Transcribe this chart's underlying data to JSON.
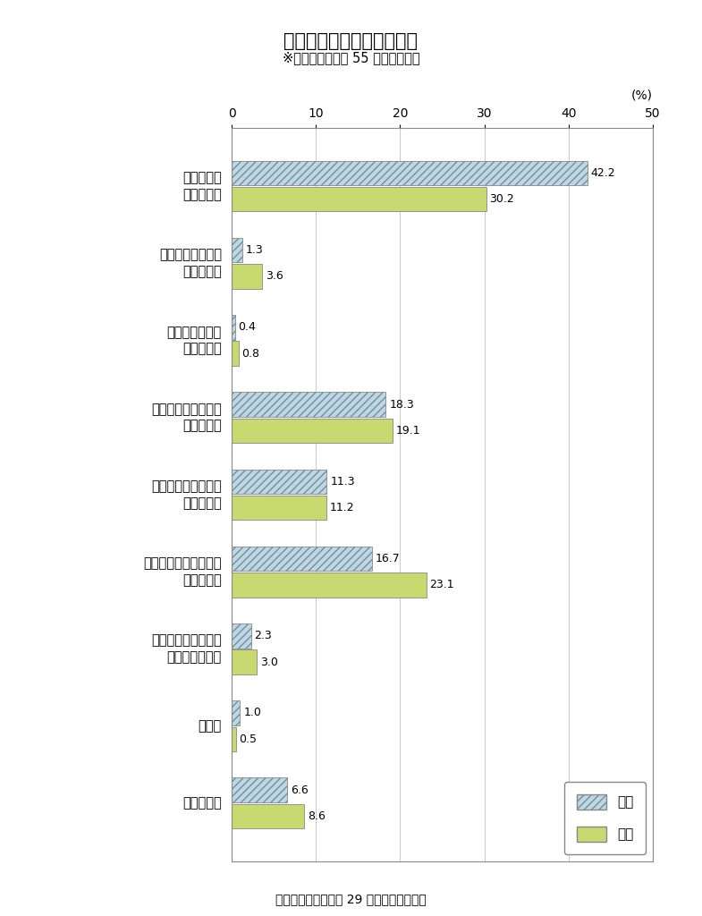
{
  "title": "図１　介護を受けたい場所",
  "subtitle": "※調査対象：全国 55 歳以上の男女",
  "source": "出典：内閣府　平成 29 年版高齢社会白書",
  "percent_label": "(%)",
  "xlim": [
    0,
    50
  ],
  "xticks": [
    0,
    10,
    20,
    30,
    40,
    50
  ],
  "categories": [
    "わからない",
    "その他",
    "民間有料老人ホーム\n等を利用したい",
    "病院などの医療機関に\n入院したい",
    "介護老人保健施設を\n利用したい",
    "介護老人福祉施設に\n入所したい",
    "親族の家で介護\nしてほしい",
    "子どもの家で介護\nしてほしい",
    "自宅で介護\nしてほしい"
  ],
  "male_values": [
    6.6,
    1.0,
    2.3,
    16.7,
    11.3,
    18.3,
    0.4,
    1.3,
    42.2
  ],
  "female_values": [
    8.6,
    0.5,
    3.0,
    23.1,
    11.2,
    19.1,
    0.8,
    3.6,
    30.2
  ],
  "male_color": "#b8d9ea",
  "female_color": "#c8d96f",
  "male_hatch": "////",
  "male_label": "男性",
  "female_label": "女性",
  "bar_height": 0.32,
  "background_color": "#ffffff",
  "grid_color": "#cccccc",
  "border_color": "#888888",
  "title_fontsize": 15,
  "subtitle_fontsize": 10.5,
  "label_fontsize": 10.5,
  "tick_fontsize": 10,
  "value_fontsize": 9,
  "source_fontsize": 10,
  "legend_fontsize": 11
}
